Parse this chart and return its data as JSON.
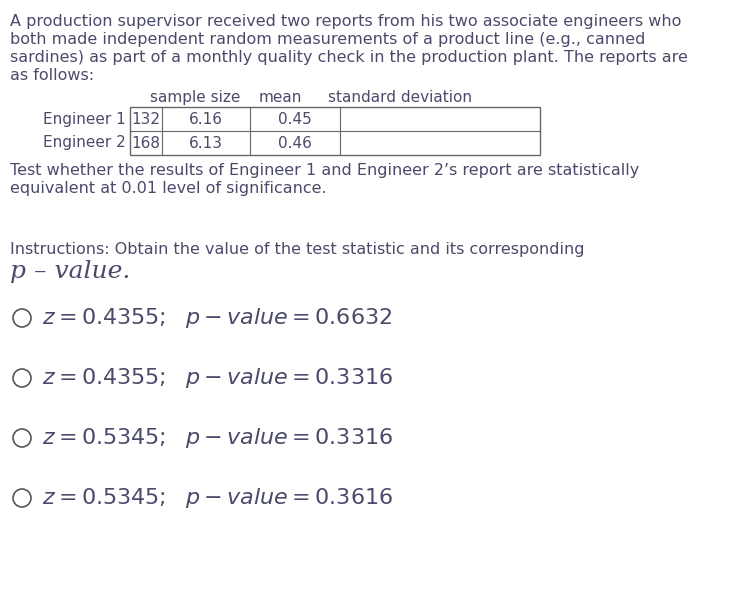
{
  "background_color": "#ffffff",
  "text_color": "#4a4a6a",
  "paragraph_text_lines": [
    "A production supervisor received two reports from his two associate engineers who",
    "both made independent random measurements of a product line (e.g., canned",
    "sardines) as part of a monthly quality check in the production plant. The reports are",
    "as follows:"
  ],
  "table_headers": [
    "sample size",
    "mean",
    "standard deviation"
  ],
  "table_row_labels": [
    "Engineer 1",
    "Engineer 2"
  ],
  "table_data": [
    [
      "132",
      "6.16",
      "0.45"
    ],
    [
      "168",
      "6.13",
      "0.46"
    ]
  ],
  "test_text_lines": [
    "Test whether the results of Engineer 1 and Engineer 2’s report are statistically",
    "equivalent at 0.01 level of significance."
  ],
  "instructions_line": "Instructions: Obtain the value of the test statistic and its corresponding",
  "pvalue_label": "p – value.",
  "choice_z_vals": [
    "0.4355",
    "0.4355",
    "0.5345",
    "0.5345"
  ],
  "choice_p_vals": [
    "0.6632",
    "0.3316",
    "0.3316",
    "0.3616"
  ],
  "font_size_body": 11.5,
  "font_size_table": 11,
  "font_size_choices": 16,
  "font_size_pvalue": 18,
  "font_size_instructions": 11.5
}
